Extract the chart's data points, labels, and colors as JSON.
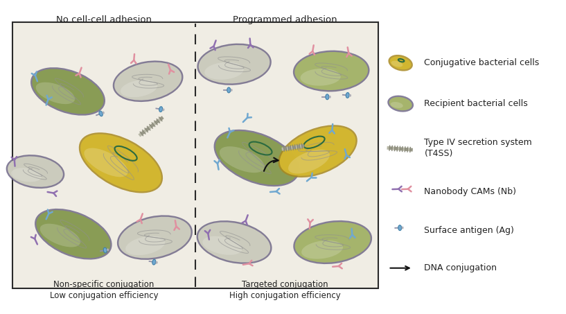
{
  "white_bg": "#ffffff",
  "panel_bg": "#f0ede4",
  "left_label": "No cell-cell adhesion",
  "right_label": "Programmed adhesion",
  "bottom_left": "Non-specific conjugation\nLow conjugation efficiency",
  "bottom_right": "Targeted conjugation\nHigh conjugation efficiency",
  "legend_items": [
    "Conjugative bacterial cells",
    "Recipient bacterial cells",
    "Type IV secretion system\n(T4SS)",
    "Nanobody CAMs (Nb)",
    "Surface antigen (Ag)",
    "DNA conjugation"
  ],
  "green_dark": "#8a9e52",
  "green_mid": "#a8b86a",
  "green_light": "#bcc87a",
  "yellow_fill": "#d4b830",
  "yellow_light": "#e8cc50",
  "gray_fill": "#b8b8a8",
  "gray_light": "#d0d0c0",
  "outline_col": "#706888",
  "yellow_outline": "#a88820",
  "pink_col": "#e090a0",
  "blue_col": "#70a8d0",
  "purple_col": "#9070b0",
  "dna_col": "#909090",
  "text_col": "#222222"
}
